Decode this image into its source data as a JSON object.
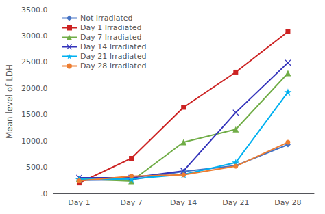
{
  "chart_data": {
    "type": "line",
    "ylabel": "Mean level of LDH",
    "categories": [
      "Day 1",
      "Day 7",
      "Day 14",
      "Day 21",
      "Day 28"
    ],
    "series": [
      {
        "name": "Not Irradiated",
        "color": "#4472c4",
        "marker": "diamond",
        "values": [
          250,
          260,
          420,
          530,
          930
        ]
      },
      {
        "name": "Day 1 Irradiated",
        "color": "#cc2222",
        "marker": "square",
        "values": [
          200,
          670,
          1640,
          2310,
          3080
        ]
      },
      {
        "name": "Day 7 Irradiated",
        "color": "#70ad47",
        "marker": "triangle",
        "values": [
          280,
          235,
          975,
          1220,
          2290
        ]
      },
      {
        "name": "Day 14 Irradiated",
        "color": "#3333bb",
        "marker": "x",
        "values": [
          300,
          300,
          430,
          1540,
          2490
        ]
      },
      {
        "name": "Day 21 Irradiated",
        "color": "#00b0f0",
        "marker": "star",
        "values": [
          270,
          275,
          360,
          590,
          1930
        ]
      },
      {
        "name": "Day 28 Irradiated",
        "color": "#ed7d31",
        "marker": "circle",
        "values": [
          240,
          330,
          355,
          520,
          975
        ]
      }
    ],
    "ylim": [
      0,
      3500
    ],
    "yticks": [
      {
        "value": 0,
        "label": ".0"
      },
      {
        "value": 500,
        "label": "500.0"
      },
      {
        "value": 1000,
        "label": "1000.0"
      },
      {
        "value": 1500,
        "label": "1500.0"
      },
      {
        "value": 2000,
        "label": "2000.0"
      },
      {
        "value": 2500,
        "label": "2500.0"
      },
      {
        "value": 3000,
        "label": "3000.0"
      },
      {
        "value": 3500,
        "label": "3500.0"
      }
    ],
    "grid": false,
    "legend": "upper left"
  }
}
